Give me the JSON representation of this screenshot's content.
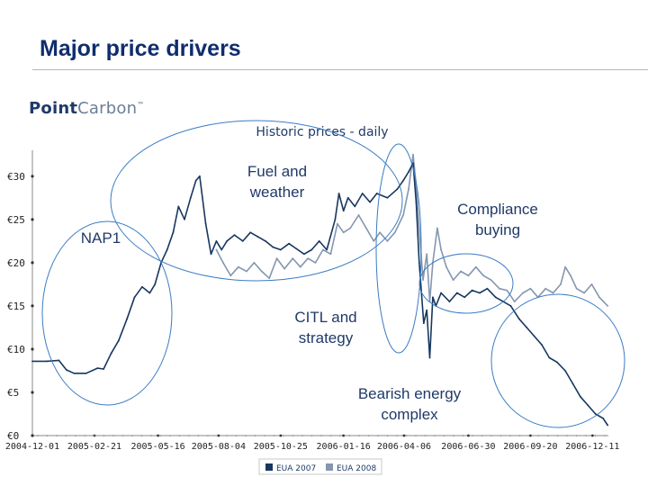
{
  "slide": {
    "title": "Major price drivers",
    "logo_word1": "Point",
    "logo_word2": "Carbon",
    "logo_mark": "™"
  },
  "chart_data": {
    "type": "line",
    "title": "Historic prices - daily",
    "ylim": [
      0,
      33
    ],
    "yticks": [
      0,
      5,
      10,
      15,
      20,
      25,
      30
    ],
    "ytick_labels": [
      "€0",
      "€5",
      "€10",
      "€15",
      "€20",
      "€25",
      "€30"
    ],
    "x_dates": [
      "2004-12-01",
      "2005-02-21",
      "2005-05-16",
      "2005-08-04",
      "2005-10-25",
      "2006-01-16",
      "2006-04-06",
      "2006-06-30",
      "2006-09-20",
      "2006-12-11"
    ],
    "xlim": [
      "2004-12-01",
      "2007-01-01"
    ],
    "grid": false,
    "legend": "bottom-center",
    "colors": {
      "eua2007": "#17375e",
      "eua2008": "#8496b0",
      "annotation": "#3a7cc4",
      "axis": "#888888"
    },
    "series": [
      {
        "name": "EUA 2007",
        "points": [
          [
            "2004-12-01",
            8.6
          ],
          [
            "2004-12-20",
            8.6
          ],
          [
            "2005-01-05",
            8.7
          ],
          [
            "2005-01-15",
            7.6
          ],
          [
            "2005-01-25",
            7.2
          ],
          [
            "2005-02-10",
            7.2
          ],
          [
            "2005-02-25",
            7.8
          ],
          [
            "2005-03-05",
            7.7
          ],
          [
            "2005-03-15",
            9.5
          ],
          [
            "2005-03-25",
            11.0
          ],
          [
            "2005-04-05",
            13.5
          ],
          [
            "2005-04-15",
            16.0
          ],
          [
            "2005-04-25",
            17.2
          ],
          [
            "2005-05-05",
            16.5
          ],
          [
            "2005-05-12",
            17.5
          ],
          [
            "2005-05-20",
            20.0
          ],
          [
            "2005-05-28",
            21.5
          ],
          [
            "2005-06-05",
            23.5
          ],
          [
            "2005-06-12",
            26.5
          ],
          [
            "2005-06-20",
            25.0
          ],
          [
            "2005-06-28",
            27.5
          ],
          [
            "2005-07-05",
            29.5
          ],
          [
            "2005-07-10",
            30.0
          ],
          [
            "2005-07-18",
            24.5
          ],
          [
            "2005-07-25",
            21.0
          ],
          [
            "2005-08-01",
            22.5
          ],
          [
            "2005-08-08",
            21.5
          ],
          [
            "2005-08-15",
            22.5
          ],
          [
            "2005-08-25",
            23.2
          ],
          [
            "2005-09-05",
            22.5
          ],
          [
            "2005-09-15",
            23.5
          ],
          [
            "2005-09-25",
            23.0
          ],
          [
            "2005-10-05",
            22.5
          ],
          [
            "2005-10-15",
            21.8
          ],
          [
            "2005-10-25",
            21.5
          ],
          [
            "2005-11-05",
            22.2
          ],
          [
            "2005-11-15",
            21.6
          ],
          [
            "2005-11-25",
            21.0
          ],
          [
            "2005-12-05",
            21.5
          ],
          [
            "2005-12-15",
            22.5
          ],
          [
            "2005-12-25",
            21.5
          ],
          [
            "2006-01-05",
            25.0
          ],
          [
            "2006-01-10",
            28.0
          ],
          [
            "2006-01-16",
            26.0
          ],
          [
            "2006-01-22",
            27.5
          ],
          [
            "2006-01-31",
            26.5
          ],
          [
            "2006-02-10",
            28.0
          ],
          [
            "2006-02-20",
            27.0
          ],
          [
            "2006-03-01",
            28.0
          ],
          [
            "2006-03-15",
            27.5
          ],
          [
            "2006-03-28",
            28.5
          ],
          [
            "2006-04-05",
            29.5
          ],
          [
            "2006-04-12",
            30.5
          ],
          [
            "2006-04-18",
            31.5
          ],
          [
            "2006-04-22",
            27.0
          ],
          [
            "2006-04-26",
            20.0
          ],
          [
            "2006-05-02",
            13.0
          ],
          [
            "2006-05-06",
            14.5
          ],
          [
            "2006-05-10",
            9.0
          ],
          [
            "2006-05-14",
            16.0
          ],
          [
            "2006-05-18",
            15.0
          ],
          [
            "2006-05-25",
            16.5
          ],
          [
            "2006-06-05",
            15.5
          ],
          [
            "2006-06-15",
            16.5
          ],
          [
            "2006-06-25",
            16.0
          ],
          [
            "2006-07-05",
            16.8
          ],
          [
            "2006-07-15",
            16.5
          ],
          [
            "2006-07-25",
            17.0
          ],
          [
            "2006-08-05",
            16.0
          ],
          [
            "2006-08-15",
            15.5
          ],
          [
            "2006-08-25",
            15.0
          ],
          [
            "2006-09-05",
            13.5
          ],
          [
            "2006-09-15",
            12.5
          ],
          [
            "2006-09-25",
            11.5
          ],
          [
            "2006-10-05",
            10.5
          ],
          [
            "2006-10-15",
            9.0
          ],
          [
            "2006-10-25",
            8.5
          ],
          [
            "2006-11-05",
            7.5
          ],
          [
            "2006-11-15",
            6.0
          ],
          [
            "2006-11-25",
            4.5
          ],
          [
            "2006-12-05",
            3.5
          ],
          [
            "2006-12-15",
            2.5
          ],
          [
            "2006-12-25",
            2.0
          ],
          [
            "2006-12-31",
            1.2
          ]
        ]
      },
      {
        "name": "EUA 2008",
        "points": [
          [
            "2005-08-01",
            21.5
          ],
          [
            "2005-08-10",
            20.0
          ],
          [
            "2005-08-20",
            18.5
          ],
          [
            "2005-08-30",
            19.5
          ],
          [
            "2005-09-10",
            19.0
          ],
          [
            "2005-09-20",
            20.0
          ],
          [
            "2005-09-30",
            19.0
          ],
          [
            "2005-10-10",
            18.2
          ],
          [
            "2005-10-20",
            20.5
          ],
          [
            "2005-10-30",
            19.3
          ],
          [
            "2005-11-10",
            20.5
          ],
          [
            "2005-11-20",
            19.5
          ],
          [
            "2005-11-30",
            20.5
          ],
          [
            "2005-12-10",
            20.0
          ],
          [
            "2005-12-20",
            21.5
          ],
          [
            "2005-12-30",
            21.0
          ],
          [
            "2006-01-08",
            24.5
          ],
          [
            "2006-01-16",
            23.5
          ],
          [
            "2006-01-25",
            24.0
          ],
          [
            "2006-02-05",
            25.5
          ],
          [
            "2006-02-15",
            24.0
          ],
          [
            "2006-02-25",
            22.5
          ],
          [
            "2006-03-05",
            23.5
          ],
          [
            "2006-03-15",
            22.5
          ],
          [
            "2006-03-25",
            23.5
          ],
          [
            "2006-04-05",
            25.5
          ],
          [
            "2006-04-12",
            28.5
          ],
          [
            "2006-04-18",
            32.5
          ],
          [
            "2006-04-22",
            29.0
          ],
          [
            "2006-04-26",
            24.0
          ],
          [
            "2006-05-01",
            18.0
          ],
          [
            "2006-05-06",
            21.0
          ],
          [
            "2006-05-10",
            15.5
          ],
          [
            "2006-05-14",
            20.0
          ],
          [
            "2006-05-20",
            24.0
          ],
          [
            "2006-05-25",
            21.5
          ],
          [
            "2006-06-01",
            19.5
          ],
          [
            "2006-06-10",
            18.0
          ],
          [
            "2006-06-20",
            19.0
          ],
          [
            "2006-06-30",
            18.5
          ],
          [
            "2006-07-10",
            19.5
          ],
          [
            "2006-07-20",
            18.5
          ],
          [
            "2006-07-30",
            18.0
          ],
          [
            "2006-08-10",
            17.0
          ],
          [
            "2006-08-20",
            16.8
          ],
          [
            "2006-08-30",
            15.5
          ],
          [
            "2006-09-10",
            16.5
          ],
          [
            "2006-09-20",
            17.0
          ],
          [
            "2006-09-30",
            16.0
          ],
          [
            "2006-10-10",
            17.0
          ],
          [
            "2006-10-20",
            16.5
          ],
          [
            "2006-10-30",
            17.5
          ],
          [
            "2006-11-05",
            19.5
          ],
          [
            "2006-11-12",
            18.5
          ],
          [
            "2006-11-20",
            17.0
          ],
          [
            "2006-11-30",
            16.5
          ],
          [
            "2006-12-10",
            17.5
          ],
          [
            "2006-12-20",
            16.0
          ],
          [
            "2006-12-31",
            15.0
          ]
        ]
      }
    ],
    "annotations": [
      "Fuel and weather",
      "NAP1",
      "Compliance buying",
      "CITL and strategy",
      "Bearish energy complex"
    ]
  }
}
